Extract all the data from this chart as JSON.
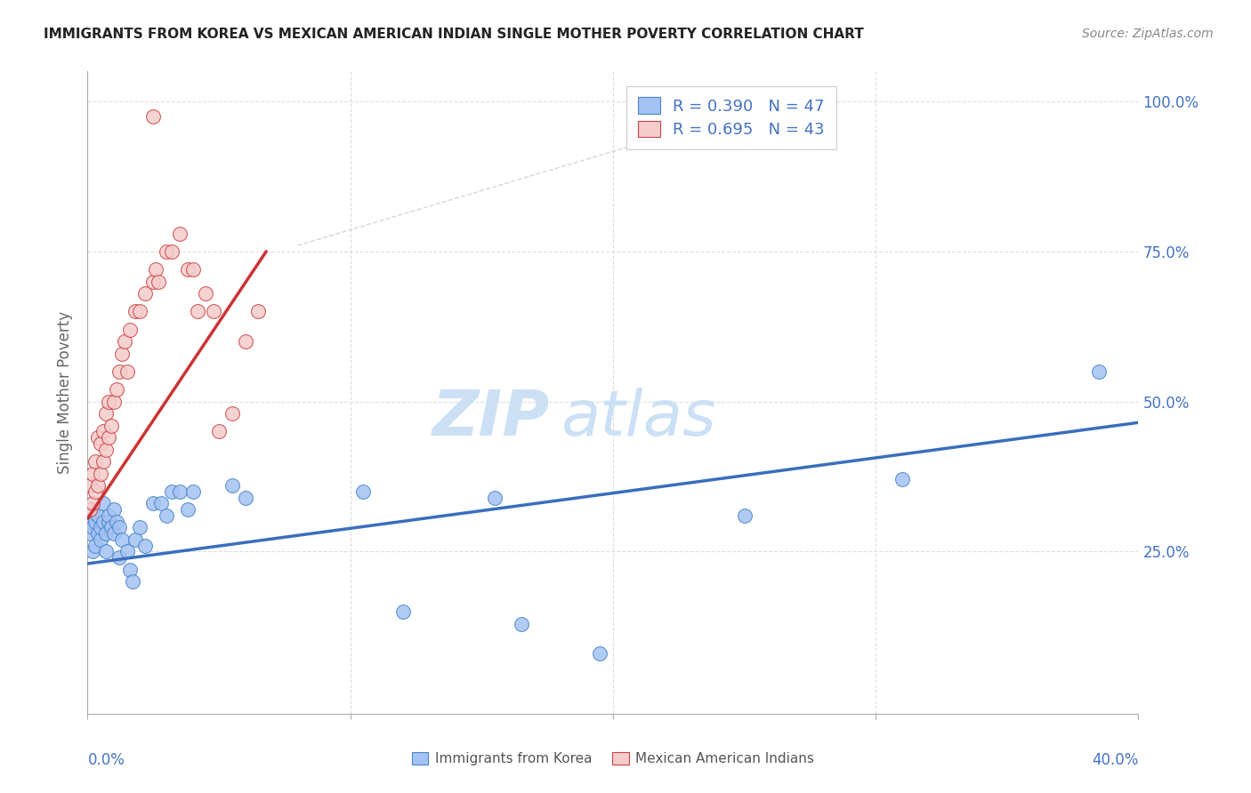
{
  "title": "IMMIGRANTS FROM KOREA VS MEXICAN AMERICAN INDIAN SINGLE MOTHER POVERTY CORRELATION CHART",
  "source": "Source: ZipAtlas.com",
  "ylabel": "Single Mother Poverty",
  "xlim": [
    0.0,
    0.4
  ],
  "ylim": [
    -0.02,
    1.05
  ],
  "color_korea": "#a4c2f4",
  "color_mexican": "#f4cccc",
  "color_korea_edge": "#4a86c8",
  "color_mexican_edge": "#cc4444",
  "color_korea_line": "#3a6ebd",
  "color_mexican_line": "#cc3333",
  "color_axis_labels": "#4472c4",
  "color_grid": "#dddddd",
  "watermark_color": "#cce0f5",
  "korea_x": [
    0.001,
    0.001,
    0.002,
    0.002,
    0.002,
    0.003,
    0.003,
    0.004,
    0.004,
    0.005,
    0.005,
    0.006,
    0.006,
    0.007,
    0.007,
    0.008,
    0.008,
    0.009,
    0.01,
    0.01,
    0.011,
    0.012,
    0.012,
    0.013,
    0.015,
    0.016,
    0.017,
    0.018,
    0.02,
    0.022,
    0.025,
    0.028,
    0.03,
    0.032,
    0.035,
    0.038,
    0.04,
    0.055,
    0.06,
    0.105,
    0.12,
    0.155,
    0.165,
    0.195,
    0.25,
    0.31,
    0.385
  ],
  "korea_y": [
    0.28,
    0.3,
    0.25,
    0.29,
    0.32,
    0.26,
    0.3,
    0.28,
    0.31,
    0.27,
    0.29,
    0.3,
    0.33,
    0.25,
    0.28,
    0.3,
    0.31,
    0.29,
    0.28,
    0.32,
    0.3,
    0.24,
    0.29,
    0.27,
    0.25,
    0.22,
    0.2,
    0.27,
    0.29,
    0.26,
    0.33,
    0.33,
    0.31,
    0.35,
    0.35,
    0.32,
    0.35,
    0.36,
    0.34,
    0.35,
    0.15,
    0.34,
    0.13,
    0.08,
    0.31,
    0.37,
    0.55
  ],
  "mexican_x": [
    0.001,
    0.001,
    0.002,
    0.002,
    0.003,
    0.003,
    0.004,
    0.004,
    0.005,
    0.005,
    0.006,
    0.006,
    0.007,
    0.007,
    0.008,
    0.008,
    0.009,
    0.01,
    0.011,
    0.012,
    0.013,
    0.014,
    0.015,
    0.016,
    0.018,
    0.02,
    0.022,
    0.025,
    0.026,
    0.027,
    0.03,
    0.032,
    0.035,
    0.038,
    0.04,
    0.042,
    0.045,
    0.048,
    0.05,
    0.055,
    0.06,
    0.065,
    0.025
  ],
  "mexican_y": [
    0.32,
    0.36,
    0.33,
    0.38,
    0.35,
    0.4,
    0.36,
    0.44,
    0.38,
    0.43,
    0.4,
    0.45,
    0.42,
    0.48,
    0.44,
    0.5,
    0.46,
    0.5,
    0.52,
    0.55,
    0.58,
    0.6,
    0.55,
    0.62,
    0.65,
    0.65,
    0.68,
    0.7,
    0.72,
    0.7,
    0.75,
    0.75,
    0.78,
    0.72,
    0.72,
    0.65,
    0.68,
    0.65,
    0.45,
    0.48,
    0.6,
    0.65,
    0.975
  ],
  "korea_line_x": [
    0.0,
    0.4
  ],
  "korea_line_y": [
    0.23,
    0.465
  ],
  "mexican_line_x": [
    0.0,
    0.068
  ],
  "mexican_line_y": [
    0.305,
    0.75
  ],
  "diag_line_x": [
    0.08,
    0.26
  ],
  "diag_line_y": [
    0.76,
    0.995
  ]
}
